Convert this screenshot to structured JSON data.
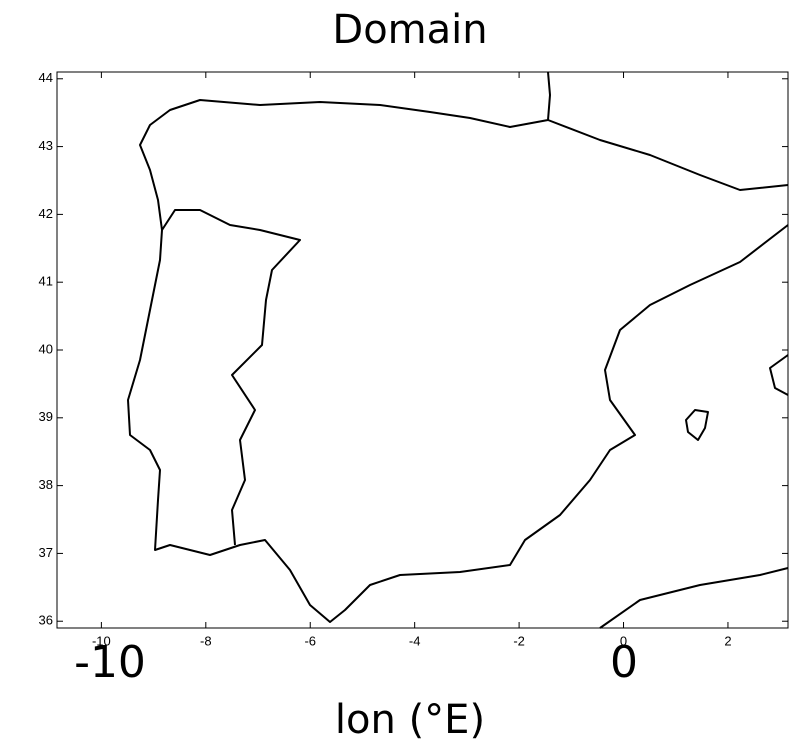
{
  "chart_data": {
    "type": "map",
    "title": "Domain",
    "xlabel": "lon (°E)",
    "xlim": [
      -10.85,
      3.15
    ],
    "xticks": [
      -10,
      -8,
      -6,
      -4,
      -2,
      0,
      2
    ],
    "ylim": [
      35.9,
      44.1
    ],
    "yticks": [
      36,
      37,
      38,
      39,
      40,
      41,
      42,
      43,
      44
    ],
    "annotations": [
      "-10",
      "0"
    ],
    "color": "#000000"
  }
}
